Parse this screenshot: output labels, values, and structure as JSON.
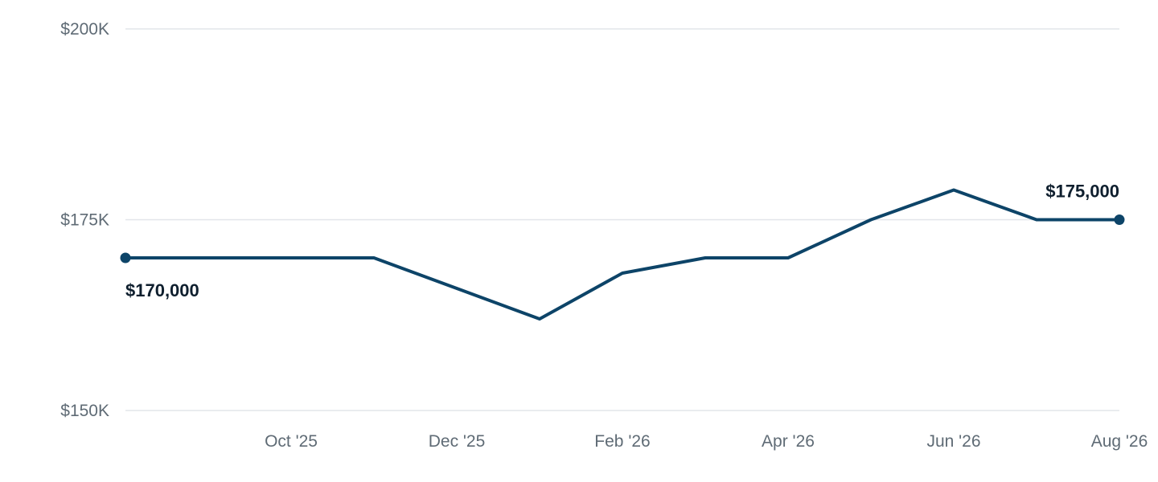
{
  "chart_data": {
    "type": "line",
    "x": [
      "2025-08",
      "2025-09",
      "2025-10",
      "2025-11",
      "2025-12",
      "2026-01",
      "2026-02",
      "2026-03",
      "2026-04",
      "2026-05",
      "2026-06",
      "2026-07",
      "2026-08"
    ],
    "series": [
      {
        "values": [
          170000,
          170000,
          170000,
          170000,
          166000,
          162000,
          168000,
          170000,
          170000,
          175000,
          178900,
          175000,
          175000
        ],
        "color": "#0d4468"
      }
    ],
    "ylim": [
      150000,
      200000
    ],
    "y_ticks": [
      {
        "value": 200000,
        "label": "$200K"
      },
      {
        "value": 175000,
        "label": "$175K"
      },
      {
        "value": 150000,
        "label": "$150K"
      }
    ],
    "x_ticks": [
      {
        "x": "2025-10",
        "label": "Oct '25"
      },
      {
        "x": "2025-12",
        "label": "Dec '25"
      },
      {
        "x": "2026-02",
        "label": "Feb '26"
      },
      {
        "x": "2026-04",
        "label": "Apr '26"
      },
      {
        "x": "2026-06",
        "label": "Jun '26"
      },
      {
        "x": "2026-08",
        "label": "Aug '26"
      }
    ],
    "annotations": [
      {
        "x": "2025-08",
        "value": 170000,
        "label": "$170,000",
        "position": "below"
      },
      {
        "x": "2026-08",
        "value": 175000,
        "label": "$175,000",
        "position": "above"
      }
    ],
    "grid": true,
    "legend": "none",
    "colors": {
      "line": "#0d4468",
      "grid": "#e2e5ea",
      "tick_text": "#5f6b75",
      "label_text": "#0f1f2e"
    }
  }
}
